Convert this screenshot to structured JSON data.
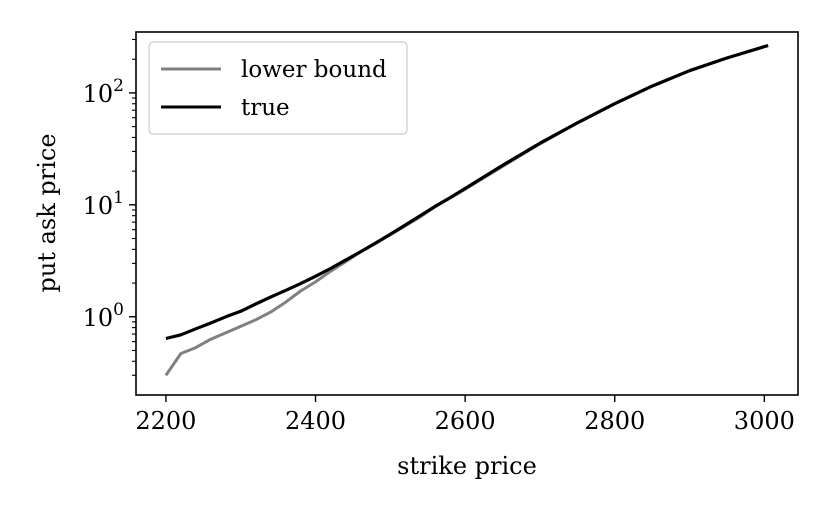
{
  "chart_data": {
    "type": "line",
    "title": "",
    "xlabel": "strike price",
    "ylabel": "put ask price",
    "xlim": [
      2160,
      3045
    ],
    "ylim": [
      0.2,
      350
    ],
    "yscale": "log",
    "xticks": [
      2200,
      2400,
      2600,
      2800,
      3000
    ],
    "yticks": [
      {
        "value": 1,
        "label_base": "10",
        "label_exp": "0"
      },
      {
        "value": 10,
        "label_base": "10",
        "label_exp": "1"
      },
      {
        "value": 100,
        "label_base": "10",
        "label_exp": "2"
      }
    ],
    "grid": false,
    "legend_position": "top-left",
    "series": [
      {
        "name": "lower bound",
        "color": "#808080",
        "x": [
          2200,
          2220,
          2240,
          2260,
          2280,
          2300,
          2320,
          2340,
          2360,
          2380,
          2400,
          2420,
          2440,
          2460,
          2480,
          2500,
          2520,
          2540,
          2560,
          2580,
          2600,
          2650,
          2700,
          2750,
          2800,
          2850,
          2900,
          2950,
          3005
        ],
        "y": [
          0.3,
          0.47,
          0.53,
          0.63,
          0.72,
          0.82,
          0.94,
          1.1,
          1.35,
          1.7,
          2.05,
          2.55,
          3.1,
          3.8,
          4.5,
          5.4,
          6.5,
          7.8,
          9.6,
          11.5,
          13.8,
          22,
          35,
          54,
          80,
          115,
          158,
          205,
          265
        ]
      },
      {
        "name": "true",
        "color": "#000000",
        "x": [
          2200,
          2220,
          2240,
          2260,
          2280,
          2300,
          2320,
          2340,
          2360,
          2380,
          2400,
          2420,
          2440,
          2460,
          2480,
          2500,
          2520,
          2540,
          2560,
          2580,
          2600,
          2650,
          2700,
          2750,
          2800,
          2850,
          2900,
          2950,
          3005
        ],
        "y": [
          0.64,
          0.69,
          0.78,
          0.88,
          1.0,
          1.12,
          1.3,
          1.5,
          1.72,
          1.98,
          2.3,
          2.7,
          3.2,
          3.8,
          4.55,
          5.45,
          6.6,
          8.0,
          9.7,
          11.6,
          14.0,
          22.5,
          35.5,
          54,
          80,
          115,
          158,
          205,
          265
        ]
      }
    ]
  }
}
